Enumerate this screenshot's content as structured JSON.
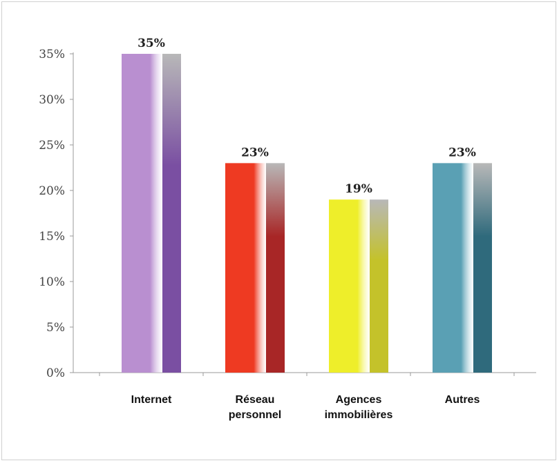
{
  "chart_data": {
    "type": "bar",
    "categories": [
      [
        "Internet"
      ],
      [
        "Réseau",
        "personnel"
      ],
      [
        "Agences",
        "immobilières"
      ],
      [
        "Autres"
      ]
    ],
    "values": [
      35,
      23,
      19,
      23
    ],
    "value_labels": [
      "35%",
      "23%",
      "19%",
      "23%"
    ],
    "colors": [
      "#b98fd0",
      "#ee3a22",
      "#eeee2a",
      "#5aa0b4"
    ],
    "shade_colors": [
      "#7a4fa2",
      "#a82626",
      "#c4c22a",
      "#2f6a7c"
    ],
    "ylim": [
      0,
      35
    ],
    "yticks": [
      "0%",
      "5%",
      "10%",
      "15%",
      "20%",
      "25%",
      "30%",
      "35%"
    ],
    "ytick_values": [
      0,
      5,
      10,
      15,
      20,
      25,
      30,
      35
    ],
    "grid": false,
    "legend": "none"
  }
}
